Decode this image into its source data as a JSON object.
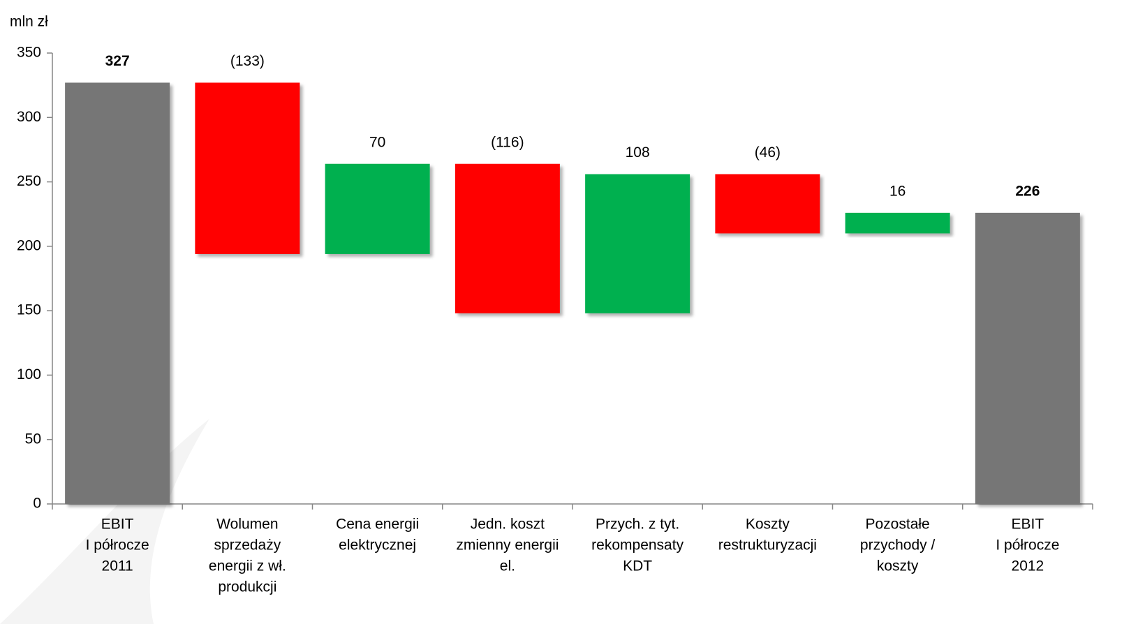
{
  "chart_data": {
    "type": "waterfall",
    "y_label": "mln zł",
    "categories": [
      "EBIT\nI półrocze\n2011",
      "Wolumen\nsprzedaży\nenergii z wł.\nprodukcji",
      "Cena energii\nelektrycznej",
      "Jedn. koszt\nzmienny energii\nel.",
      "Przych. z tyt.\nrekompensaty\nKDT",
      "Koszty\nrestrukturyzacji",
      "Pozostałe\nprzychody /\nkoszty",
      "EBIT\nI półrocze\n2012"
    ],
    "values": [
      327,
      -133,
      70,
      -116,
      108,
      -46,
      16,
      226
    ],
    "value_labels": [
      "327",
      "(133)",
      "70",
      "(116)",
      "108",
      "(46)",
      "16",
      "226"
    ],
    "is_total": [
      true,
      false,
      false,
      false,
      false,
      false,
      false,
      true
    ],
    "colors": {
      "total": "#767676",
      "increase": "#00b050",
      "decrease": "#ff0000"
    },
    "ylim": [
      0,
      350
    ],
    "yticks": [
      0,
      50,
      100,
      150,
      200,
      250,
      300,
      350
    ],
    "grid": false
  }
}
